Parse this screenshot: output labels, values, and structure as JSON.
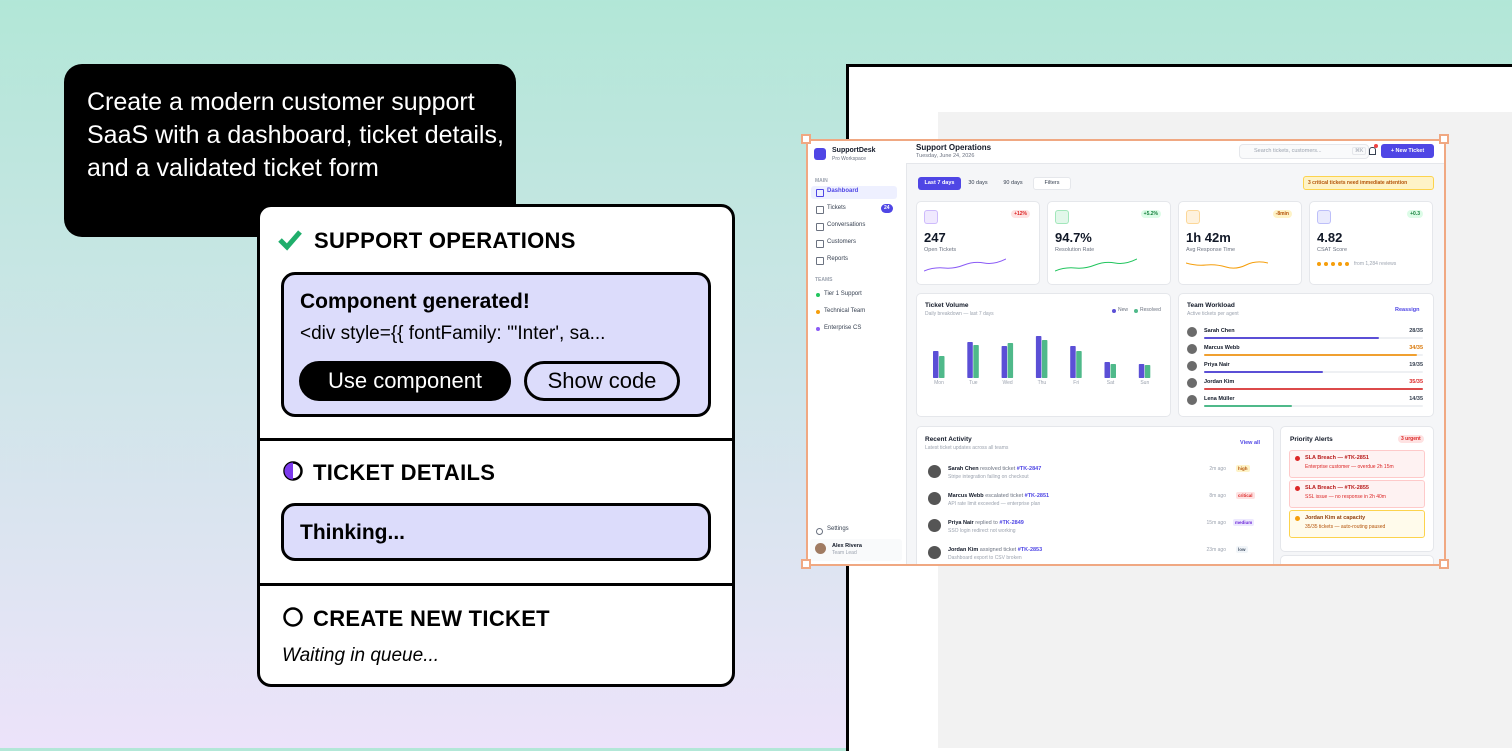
{
  "prompt": "Create a modern customer support SaaS with a dashboard, ticket details, and a validated ticket form",
  "steps": [
    {
      "title": "SUPPORT OPERATIONS",
      "heading": "Component generated!",
      "code": "<div style={{ fontFamily: '\"Inter', sa...",
      "buttons": [
        "Use component",
        "Show code"
      ]
    },
    {
      "title": "TICKET DETAILS",
      "message": "Thinking..."
    },
    {
      "title": "CREATE NEW TICKET",
      "message": "Waiting in queue..."
    }
  ],
  "dashboard": {
    "brand": "SupportDesk",
    "workspace": "Pro Workspace",
    "main_label": "MAIN",
    "nav": [
      {
        "label": "Dashboard"
      },
      {
        "label": "Tickets",
        "badge": 24
      },
      {
        "label": "Conversations"
      },
      {
        "label": "Customers"
      },
      {
        "label": "Reports"
      }
    ],
    "teams_label": "TEAMS",
    "teams": [
      {
        "label": "Tier 1 Support",
        "color": "#22c55e"
      },
      {
        "label": "Technical Team",
        "color": "#f59e0b"
      },
      {
        "label": "Enterprise CS",
        "color": "#8b5cf6"
      }
    ],
    "settings": "Settings",
    "user": {
      "name": "Alex Rivera",
      "role": "Team Lead"
    },
    "title": "Support Operations",
    "date": "Tuesday, June 24, 2026",
    "search": "Search tickets, customers...",
    "shortcut": "⌘K",
    "new_ticket": "+ New Ticket",
    "ranges": [
      "Last 7 days",
      "30 days",
      "90 days"
    ],
    "filters": "Filters",
    "alert": "3 critical tickets need immediate attention",
    "stats": [
      {
        "value": "247",
        "label": "Open Tickets",
        "change": "+12%",
        "color": "#8b5cf6"
      },
      {
        "value": "94.7%",
        "label": "Resolution Rate",
        "change": "+5.2%",
        "color": "#22c55e"
      },
      {
        "value": "1h 42m",
        "label": "Avg Response Time",
        "change": "-8min",
        "color": "#f59e0b"
      },
      {
        "value": "4.82",
        "label": "CSAT Score",
        "change": "+0.3",
        "note": "from 1,284 reviews",
        "color": "#6366f1"
      }
    ],
    "volume": {
      "title": "Ticket Volume",
      "subtitle": "Daily breakdown — last 7 days",
      "categories": [
        "Mon",
        "Tue",
        "Wed",
        "Thu",
        "Fri",
        "Sat",
        "Sun"
      ],
      "series": [
        {
          "name": "New",
          "color": "#5b4fd6",
          "values": [
            54,
            72,
            64,
            84,
            64,
            32,
            28
          ]
        },
        {
          "name": "Resolved",
          "color": "#4fb98a",
          "values": [
            44,
            66,
            70,
            76,
            54,
            28,
            26
          ]
        }
      ]
    },
    "workload": {
      "title": "Team Workload",
      "subtitle": "Active tickets per agent",
      "action": "Reassign",
      "agents": [
        {
          "name": "Sarah Chen",
          "load": "28/35",
          "assigned": 28,
          "capacity": 35,
          "color": "#5b4fd6"
        },
        {
          "name": "Marcus Webb",
          "load": "34/35",
          "assigned": 34,
          "capacity": 35,
          "color": "#f0a030"
        },
        {
          "name": "Priya Nair",
          "load": "19/35",
          "assigned": 19,
          "capacity": 35,
          "color": "#5b4fd6"
        },
        {
          "name": "Jordan Kim",
          "load": "35/35",
          "assigned": 35,
          "capacity": 35,
          "color": "#dc4a4a"
        },
        {
          "name": "Lena Müller",
          "load": "14/35",
          "assigned": 14,
          "capacity": 35,
          "color": "#4fb98a"
        }
      ]
    },
    "activity": {
      "title": "Recent Activity",
      "subtitle": "Latest ticket updates across all teams",
      "action": "View all",
      "items": [
        {
          "name": "Sarah Chen",
          "verb": "resolved ticket",
          "ticket": "#TK-2847",
          "detail": "Stripe integration failing on checkout",
          "time": "2m ago",
          "tag": "high"
        },
        {
          "name": "Marcus Webb",
          "verb": "escalated ticket",
          "ticket": "#TK-2851",
          "detail": "API rate limit exceeded — enterprise plan",
          "time": "8m ago",
          "tag": "critical"
        },
        {
          "name": "Priya Nair",
          "verb": "replied to",
          "ticket": "#TK-2849",
          "detail": "SSO login redirect not working",
          "time": "15m ago",
          "tag": "medium"
        },
        {
          "name": "Jordan Kim",
          "verb": "assigned ticket",
          "ticket": "#TK-2853",
          "detail": "Dashboard export to CSV broken",
          "time": "23m ago",
          "tag": "low"
        }
      ]
    },
    "alerts": {
      "title": "Priority Alerts",
      "badge": "3 urgent",
      "items": [
        {
          "title": "SLA Breach — #TK-2851",
          "detail": "Enterprise customer — overdue 2h 15m"
        },
        {
          "title": "SLA Breach — #TK-2855",
          "detail": "SSL issue — no response in 2h 40m"
        },
        {
          "title": "Jordan Kim at capacity",
          "detail": "35/35 tickets — auto-routing paused"
        }
      ]
    }
  }
}
